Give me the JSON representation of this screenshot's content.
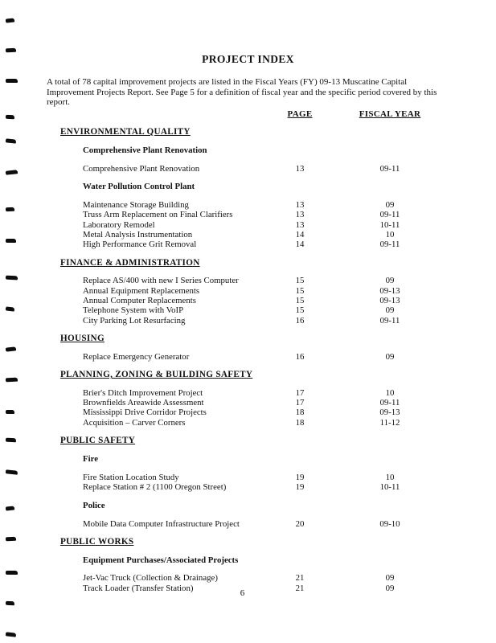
{
  "page": {
    "title": "PROJECT INDEX",
    "intro": "A total of 78 capital improvement projects are listed in the Fiscal Years (FY) 09-13 Muscatine Capital Improvement Projects Report. See Page 5 for a definition of fiscal year and the specific period covered by this report.",
    "col_page": "PAGE",
    "col_fiscal": "FISCAL YEAR",
    "page_number": "6"
  },
  "sections": [
    {
      "heading": "ENVIRONMENTAL QUALITY",
      "groups": [
        {
          "subheading": "Comprehensive Plant Renovation",
          "items": [
            {
              "name": "Comprehensive Plant Renovation",
              "page": "13",
              "fy": "09-11"
            }
          ]
        },
        {
          "subheading": "Water Pollution Control Plant",
          "items": [
            {
              "name": "Maintenance Storage Building",
              "page": "13",
              "fy": "09"
            },
            {
              "name": "Truss Arm Replacement on Final Clarifiers",
              "page": "13",
              "fy": "09-11"
            },
            {
              "name": "Laboratory Remodel",
              "page": "13",
              "fy": "10-11"
            },
            {
              "name": "Metal Analysis Instrumentation",
              "page": "14",
              "fy": "10"
            },
            {
              "name": "High Performance Grit Removal",
              "page": "14",
              "fy": "09-11"
            }
          ]
        }
      ]
    },
    {
      "heading": "FINANCE & ADMINISTRATION",
      "groups": [
        {
          "subheading": null,
          "items": [
            {
              "name": "Replace AS/400 with new I Series Computer",
              "page": "15",
              "fy": "09"
            },
            {
              "name": "Annual Equipment Replacements",
              "page": "15",
              "fy": "09-13"
            },
            {
              "name": "Annual Computer Replacements",
              "page": "15",
              "fy": "09-13"
            },
            {
              "name": "Telephone System with VoIP",
              "page": "15",
              "fy": "09"
            },
            {
              "name": "City Parking Lot Resurfacing",
              "page": "16",
              "fy": "09-11"
            }
          ]
        }
      ]
    },
    {
      "heading": "HOUSING",
      "groups": [
        {
          "subheading": null,
          "items": [
            {
              "name": "Replace Emergency Generator",
              "page": "16",
              "fy": "09"
            }
          ]
        }
      ]
    },
    {
      "heading": "PLANNING, ZONING & BUILDING SAFETY",
      "groups": [
        {
          "subheading": null,
          "items": [
            {
              "name": "Brier's Ditch Improvement Project",
              "page": "17",
              "fy": "10"
            },
            {
              "name": "Brownfields Areawide Assessment",
              "page": "17",
              "fy": "09-11"
            },
            {
              "name": "Mississippi Drive Corridor Projects",
              "page": "18",
              "fy": "09-13"
            },
            {
              "name": "Acquisition – Carver Corners",
              "page": "18",
              "fy": "11-12"
            }
          ]
        }
      ]
    },
    {
      "heading": "PUBLIC SAFETY",
      "groups": [
        {
          "subheading": "Fire",
          "items": [
            {
              "name": "Fire Station Location Study",
              "page": "19",
              "fy": "10"
            },
            {
              "name": "Replace Station # 2 (1100 Oregon Street)",
              "page": "19",
              "fy": "10-11"
            }
          ]
        },
        {
          "subheading": "Police",
          "items": [
            {
              "name": "Mobile Data Computer Infrastructure Project",
              "page": "20",
              "fy": "09-10"
            }
          ]
        }
      ]
    },
    {
      "heading": "PUBLIC WORKS",
      "groups": [
        {
          "subheading": "Equipment Purchases/Associated Projects",
          "items": [
            {
              "name": "Jet-Vac Truck (Collection & Drainage)",
              "page": "21",
              "fy": "09"
            },
            {
              "name": "Track Loader (Transfer Station)",
              "page": "21",
              "fy": "09"
            }
          ]
        }
      ]
    }
  ],
  "artifacts": {
    "binding_mark_name": "binding-hole-mark",
    "binding_mark_color": "#0d0d0d",
    "binding_mark_y_positions": [
      23,
      60,
      98,
      143,
      173,
      212,
      258,
      297,
      343,
      382,
      432,
      470,
      510,
      545,
      585,
      630,
      668,
      710,
      748,
      787
    ]
  },
  "colors": {
    "paper": "#ffffff",
    "ink": "#121212"
  }
}
